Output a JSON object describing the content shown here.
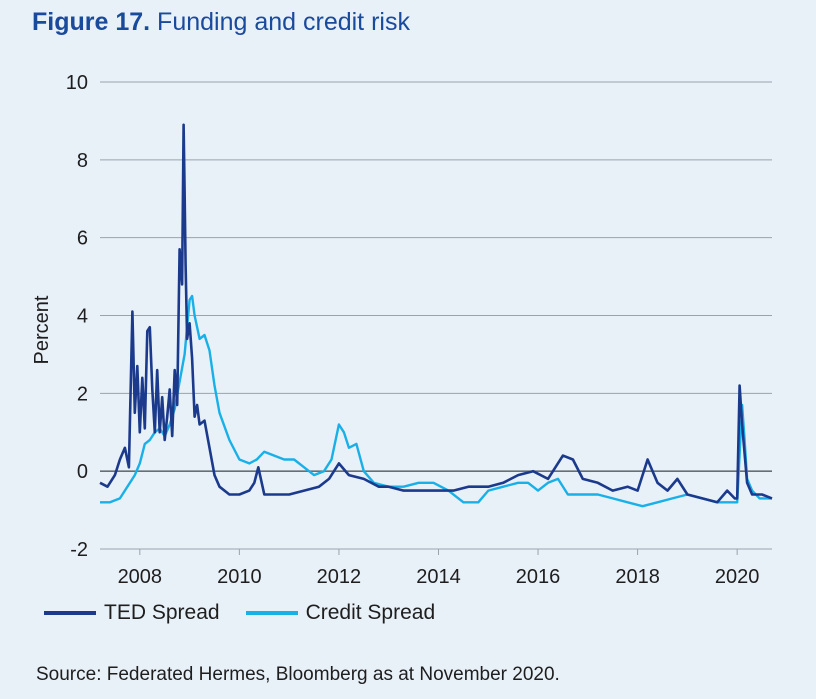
{
  "figure": {
    "number": "Figure 17.",
    "title": "Funding and credit risk"
  },
  "source_note": "Source: Federated Hermes, Bloomberg as at November 2020.",
  "colors": {
    "title": "#1a4a9c",
    "ted": "#1b3a8c",
    "credit": "#19b0e8",
    "grid": "#9aa3ab",
    "zero": "#666e76"
  },
  "chart_data": {
    "type": "line",
    "title": "Funding and credit risk",
    "xlabel": "",
    "ylabel": "Percent",
    "xlim": [
      2007.2,
      2020.7
    ],
    "ylim": [
      -2,
      10
    ],
    "yticks": [
      -2,
      0,
      2,
      4,
      6,
      8,
      10
    ],
    "ytick_labels": [
      "-2",
      "0",
      "2",
      "4",
      "6",
      "8",
      "10"
    ],
    "xticks": [
      2008,
      2010,
      2012,
      2014,
      2016,
      2018,
      2020
    ],
    "xtick_labels": [
      "2008",
      "2010",
      "2012",
      "2014",
      "2016",
      "2018",
      "2020"
    ],
    "grid": true,
    "legend_position": "bottom-left",
    "series": [
      {
        "name": "TED Spread",
        "x": [
          2007.2,
          2007.35,
          2007.5,
          2007.6,
          2007.7,
          2007.78,
          2007.85,
          2007.9,
          2007.95,
          2008.0,
          2008.05,
          2008.1,
          2008.15,
          2008.2,
          2008.25,
          2008.3,
          2008.35,
          2008.4,
          2008.45,
          2008.5,
          2008.55,
          2008.6,
          2008.65,
          2008.7,
          2008.75,
          2008.8,
          2008.85,
          2008.88,
          2008.9,
          2008.92,
          2008.95,
          2009.0,
          2009.05,
          2009.1,
          2009.15,
          2009.2,
          2009.3,
          2009.4,
          2009.5,
          2009.6,
          2009.8,
          2010.0,
          2010.2,
          2010.3,
          2010.38,
          2010.5,
          2010.8,
          2011.0,
          2011.3,
          2011.6,
          2011.8,
          2012.0,
          2012.2,
          2012.5,
          2012.8,
          2013.0,
          2013.3,
          2013.6,
          2014.0,
          2014.3,
          2014.6,
          2015.0,
          2015.3,
          2015.6,
          2015.9,
          2016.2,
          2016.5,
          2016.7,
          2016.9,
          2017.2,
          2017.5,
          2017.8,
          2018.0,
          2018.2,
          2018.4,
          2018.6,
          2018.8,
          2019.0,
          2019.3,
          2019.6,
          2019.8,
          2019.95,
          2020.0,
          2020.05,
          2020.1,
          2020.2,
          2020.3,
          2020.5,
          2020.7
        ],
        "values": [
          -0.3,
          -0.4,
          -0.1,
          0.3,
          0.6,
          0.1,
          4.1,
          1.5,
          2.7,
          1.0,
          2.4,
          1.1,
          3.6,
          3.7,
          2.1,
          1.0,
          2.6,
          1.0,
          1.9,
          0.8,
          1.4,
          2.1,
          0.9,
          2.6,
          1.7,
          5.7,
          4.8,
          8.9,
          7.2,
          5.3,
          3.4,
          3.8,
          2.9,
          1.4,
          1.7,
          1.2,
          1.3,
          0.6,
          -0.1,
          -0.4,
          -0.6,
          -0.6,
          -0.5,
          -0.3,
          0.1,
          -0.6,
          -0.6,
          -0.6,
          -0.5,
          -0.4,
          -0.2,
          0.2,
          -0.1,
          -0.2,
          -0.4,
          -0.4,
          -0.5,
          -0.5,
          -0.5,
          -0.5,
          -0.4,
          -0.4,
          -0.3,
          -0.1,
          0.0,
          -0.2,
          0.4,
          0.3,
          -0.2,
          -0.3,
          -0.5,
          -0.4,
          -0.5,
          0.3,
          -0.3,
          -0.5,
          -0.2,
          -0.6,
          -0.7,
          -0.8,
          -0.5,
          -0.7,
          -0.7,
          2.2,
          1.2,
          -0.3,
          -0.6,
          -0.6,
          -0.7
        ]
      },
      {
        "name": "Credit Spread",
        "x": [
          2007.2,
          2007.4,
          2007.6,
          2007.75,
          2007.9,
          2008.0,
          2008.1,
          2008.2,
          2008.3,
          2008.4,
          2008.5,
          2008.6,
          2008.7,
          2008.8,
          2008.9,
          2009.0,
          2009.05,
          2009.1,
          2009.2,
          2009.3,
          2009.4,
          2009.5,
          2009.6,
          2009.8,
          2010.0,
          2010.2,
          2010.35,
          2010.5,
          2010.7,
          2010.9,
          2011.1,
          2011.3,
          2011.5,
          2011.7,
          2011.85,
          2012.0,
          2012.1,
          2012.2,
          2012.35,
          2012.5,
          2012.7,
          2013.0,
          2013.3,
          2013.6,
          2013.9,
          2014.2,
          2014.5,
          2014.8,
          2015.0,
          2015.3,
          2015.6,
          2015.8,
          2016.0,
          2016.2,
          2016.4,
          2016.6,
          2016.9,
          2017.2,
          2017.5,
          2017.8,
          2018.1,
          2018.4,
          2018.7,
          2019.0,
          2019.3,
          2019.6,
          2019.9,
          2020.0,
          2020.1,
          2020.15,
          2020.2,
          2020.3,
          2020.45,
          2020.6,
          2020.7
        ],
        "values": [
          -0.8,
          -0.8,
          -0.7,
          -0.4,
          -0.1,
          0.2,
          0.7,
          0.8,
          1.0,
          1.1,
          0.9,
          1.2,
          1.6,
          2.3,
          3.0,
          4.4,
          4.5,
          4.0,
          3.4,
          3.5,
          3.1,
          2.2,
          1.5,
          0.8,
          0.3,
          0.2,
          0.3,
          0.5,
          0.4,
          0.3,
          0.3,
          0.1,
          -0.1,
          0.0,
          0.3,
          1.2,
          1.0,
          0.6,
          0.7,
          0.0,
          -0.3,
          -0.4,
          -0.4,
          -0.3,
          -0.3,
          -0.5,
          -0.8,
          -0.8,
          -0.5,
          -0.4,
          -0.3,
          -0.3,
          -0.5,
          -0.3,
          -0.2,
          -0.6,
          -0.6,
          -0.6,
          -0.7,
          -0.8,
          -0.9,
          -0.8,
          -0.7,
          -0.6,
          -0.7,
          -0.8,
          -0.8,
          -0.8,
          1.7,
          0.8,
          -0.2,
          -0.5,
          -0.7,
          -0.7,
          -0.7
        ]
      }
    ]
  }
}
